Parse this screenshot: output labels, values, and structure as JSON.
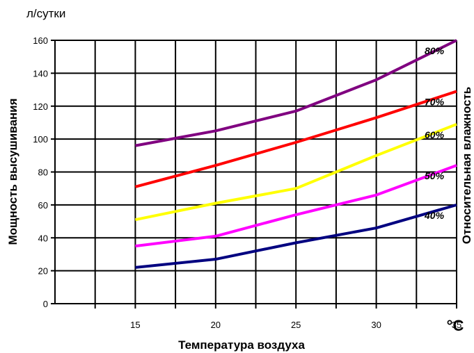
{
  "chart_data": {
    "type": "line",
    "title": "",
    "y_unit_label": "л/сутки",
    "ylabel": "Мощность высушивания",
    "xlabel": "Температура воздуха",
    "x_unit_label": "°C",
    "legend_title": "Относительная влажность",
    "x": [
      15,
      20,
      25,
      30,
      35
    ],
    "xlim": [
      10,
      35
    ],
    "ylim": [
      0,
      160
    ],
    "yticks": [
      0,
      20,
      40,
      60,
      80,
      100,
      120,
      140,
      160
    ],
    "xticks": [
      15,
      20,
      25,
      30,
      35
    ],
    "grid": true,
    "series": [
      {
        "name": "80%",
        "color": "#800080",
        "values": [
          96,
          105,
          117,
          136,
          160
        ]
      },
      {
        "name": "70%",
        "color": "#ff0000",
        "values": [
          71,
          84,
          98,
          113,
          129
        ]
      },
      {
        "name": "60%",
        "color": "#ffff00",
        "values": [
          51,
          61,
          70,
          90,
          109
        ]
      },
      {
        "name": "50%",
        "color": "#ff00ff",
        "values": [
          35,
          41,
          54,
          66,
          84
        ]
      },
      {
        "name": "40%",
        "color": "#000080",
        "values": [
          22,
          27,
          37,
          46,
          60
        ]
      }
    ]
  }
}
